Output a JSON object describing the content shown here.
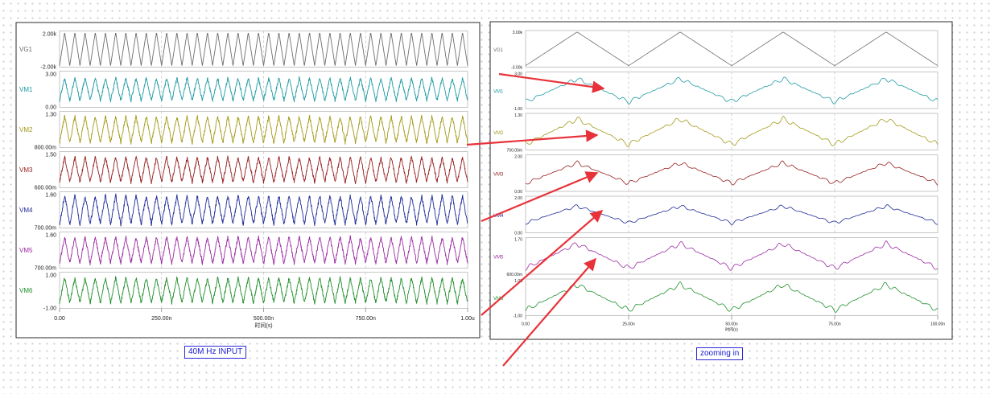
{
  "captions": {
    "left": "40M Hz INPUT",
    "right": "zooming in"
  },
  "colors": {
    "VG1": "#6e6e6e",
    "VM1": "#1e9aa3",
    "VM2": "#a39a18",
    "VM3": "#961e1e",
    "VM4": "#1e2a98",
    "VM5": "#9a2aa2",
    "VM6": "#1f8f2a",
    "arrow": "#e8323a"
  },
  "chart_data": [
    {
      "type": "line",
      "xlabel": "时间(s)",
      "x_ticks": [
        "0.00",
        "250.00n",
        "500.00n",
        "750.00n",
        "1.00u"
      ],
      "xlim": [
        0,
        1000
      ],
      "x_unit": "ns",
      "series": [
        {
          "name": "VG1",
          "ticks": [
            "2.00k",
            "-2.00k"
          ],
          "ylim": [
            -2000,
            2000
          ],
          "wave": "triangle",
          "freq_mhz": 40,
          "amplitude": 2000
        },
        {
          "name": "VM1",
          "ticks": [
            "3.00",
            "0.00"
          ],
          "ylim": [
            0,
            3
          ],
          "wave": "triangle",
          "freq_mhz": 40,
          "amplitude_fraction": 0.3
        },
        {
          "name": "VM2",
          "ticks": [
            "1.30",
            "800.00m"
          ],
          "ylim": [
            0.8,
            1.3
          ],
          "wave": "triangle",
          "freq_mhz": 40,
          "amplitude_fraction": 0.35
        },
        {
          "name": "VM3",
          "ticks": [
            "1.50",
            "600.00m"
          ],
          "ylim": [
            0.6,
            1.5
          ],
          "wave": "triangle",
          "freq_mhz": 40,
          "amplitude_fraction": 0.35
        },
        {
          "name": "VM4",
          "ticks": [
            "1.60",
            "700.00m"
          ],
          "ylim": [
            0.7,
            1.6
          ],
          "wave": "triangle",
          "freq_mhz": 40,
          "amplitude_fraction": 0.38
        },
        {
          "name": "VM5",
          "ticks": [
            "1.60",
            "700.00m"
          ],
          "ylim": [
            0.7,
            1.6
          ],
          "wave": "triangle",
          "freq_mhz": 40,
          "amplitude_fraction": 0.35
        },
        {
          "name": "VM6",
          "ticks": [
            "1.00",
            "-1.00"
          ],
          "ylim": [
            -1,
            1
          ],
          "wave": "triangle",
          "freq_mhz": 40,
          "amplitude_fraction": 0.35
        }
      ]
    },
    {
      "type": "line",
      "xlabel": "时间(s)",
      "x_ticks": [
        "0.00",
        "25.00n",
        "50.00n",
        "75.00n",
        "100.00n"
      ],
      "xlim": [
        0,
        100
      ],
      "x_unit": "ns",
      "series": [
        {
          "name": "VG1",
          "ticks": [
            "3.00k",
            "-3.00k"
          ],
          "ylim": [
            -3000,
            3000
          ],
          "wave": "triangle",
          "freq_mhz": 40,
          "amplitude": 2000
        },
        {
          "name": "VM1",
          "ticks": [
            "3.00",
            "-1.00"
          ],
          "ylim": [
            -1,
            3
          ],
          "wave": "triangle",
          "freq_mhz": 40,
          "amplitude_fraction": 0.3,
          "ringing": true
        },
        {
          "name": "VM2",
          "ticks": [
            "1.30",
            "700.00m"
          ],
          "ylim": [
            0.7,
            1.3
          ],
          "wave": "triangle",
          "freq_mhz": 40,
          "amplitude_fraction": 0.33,
          "ringing": true
        },
        {
          "name": "VM3",
          "ticks": [
            "2.00",
            "0.00"
          ],
          "ylim": [
            0,
            2
          ],
          "wave": "triangle",
          "freq_mhz": 40,
          "amplitude_fraction": 0.28,
          "ringing": true
        },
        {
          "name": "VM4",
          "ticks": [
            "2.00",
            "0.00"
          ],
          "ylim": [
            0,
            2
          ],
          "wave": "triangle",
          "freq_mhz": 40,
          "amplitude_fraction": 0.22,
          "ringing": true
        },
        {
          "name": "VM5",
          "ticks": [
            "1.70",
            "600.00m"
          ],
          "ylim": [
            0.6,
            1.7
          ],
          "wave": "triangle",
          "freq_mhz": 40,
          "amplitude_fraction": 0.32,
          "ringing": true
        },
        {
          "name": "VM6",
          "ticks": [
            "1.00",
            "-1.00"
          ],
          "ylim": [
            -1,
            1
          ],
          "wave": "triangle",
          "freq_mhz": 40,
          "amplitude_fraction": 0.35,
          "ringing": true
        }
      ]
    }
  ]
}
